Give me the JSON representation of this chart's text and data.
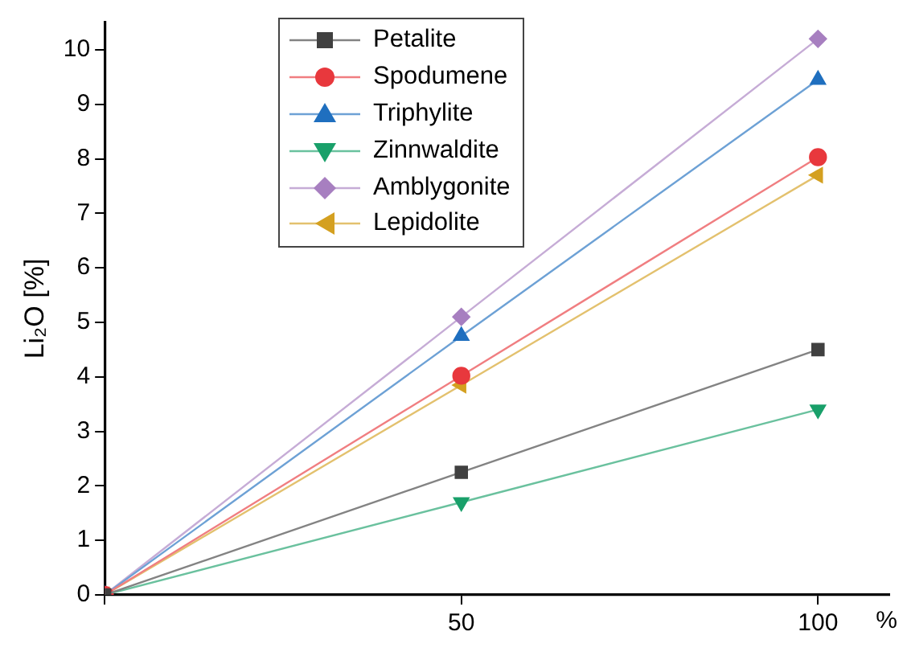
{
  "chart_data": {
    "type": "line",
    "xlabel": "%",
    "ylabel": "Li₂O [%]",
    "x": [
      0,
      50,
      100
    ],
    "series": [
      {
        "name": "Petalite",
        "color": "#404040",
        "marker": "square",
        "values": [
          0,
          2.25,
          4.5
        ]
      },
      {
        "name": "Spodumene",
        "color": "#e8383d",
        "marker": "circle",
        "values": [
          0,
          4.02,
          8.03
        ]
      },
      {
        "name": "Triphylite",
        "color": "#1f6fbf",
        "marker": "triangle",
        "values": [
          0,
          4.75,
          9.45
        ]
      },
      {
        "name": "Zinnwaldite",
        "color": "#19a06a",
        "marker": "triangle-down",
        "values": [
          0,
          1.7,
          3.4
        ]
      },
      {
        "name": "Amblygonite",
        "color": "#a77fc0",
        "marker": "diamond",
        "values": [
          0,
          5.1,
          10.2
        ]
      },
      {
        "name": "Lepidolite",
        "color": "#d4a020",
        "marker": "triangle-left",
        "values": [
          0,
          3.85,
          7.7
        ]
      }
    ],
    "xlim": [
      0,
      110
    ],
    "xticks": [
      {
        "value": 0,
        "label": null
      },
      50,
      100
    ],
    "ylim": [
      0,
      10.5
    ],
    "yticks": [
      0,
      1,
      2,
      3,
      4,
      5,
      6,
      7,
      8,
      9,
      10
    ],
    "grid": false,
    "legend": "top",
    "line_style": "solid"
  }
}
